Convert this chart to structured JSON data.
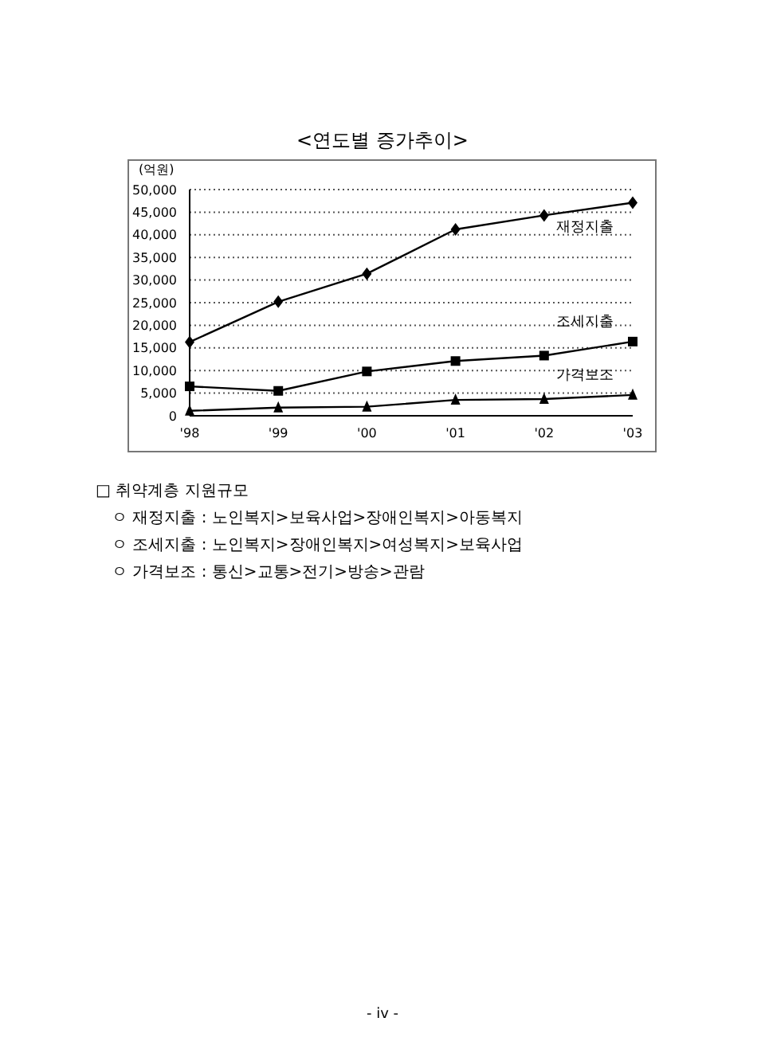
{
  "chart_data": {
    "type": "line",
    "title": "<연도별 증가추이>",
    "ylabel": "(억원)",
    "categories": [
      "'98",
      "'99",
      "'00",
      "'01",
      "'02",
      "'03"
    ],
    "series": [
      {
        "name": "재정지출",
        "color": "#000000",
        "marker": "diamond",
        "values": [
          16300,
          25200,
          31400,
          41200,
          44300,
          47100
        ]
      },
      {
        "name": "조세지출",
        "color": "#000000",
        "marker": "square",
        "values": [
          6500,
          5500,
          9800,
          12100,
          13300,
          16400
        ]
      },
      {
        "name": "가격보조",
        "color": "#000000",
        "marker": "triangle",
        "values": [
          1100,
          1800,
          2000,
          3500,
          3700,
          4600
        ]
      }
    ],
    "ylim": [
      0,
      50000
    ],
    "yticks": [
      0,
      {
        "value": 5000,
        "label": "5,000"
      },
      {
        "value": 10000,
        "label": "10,000"
      },
      {
        "value": 15000,
        "label": "15,000"
      },
      {
        "value": 20000,
        "label": "20,000"
      },
      {
        "value": 25000,
        "label": "25,000"
      },
      {
        "value": 30000,
        "label": "30,000"
      },
      {
        "value": 35000,
        "label": "35,000"
      },
      {
        "value": 40000,
        "label": "40,000"
      },
      {
        "value": 45000,
        "label": "45,000"
      },
      {
        "value": 50000,
        "label": "50,000"
      }
    ],
    "grid": "y",
    "legend": false,
    "annotations": [
      "□ 취약계층 지원규모",
      "ㅇ 재정지출 : 노인복지>보육사업>장애인복지>아동복지",
      "ㅇ 조세지출 : 노인복지>장애인복지>여성복지>보육사업",
      "ㅇ 가격보조 : 통신>교통>전기>방송>관람",
      "- iv -"
    ]
  }
}
